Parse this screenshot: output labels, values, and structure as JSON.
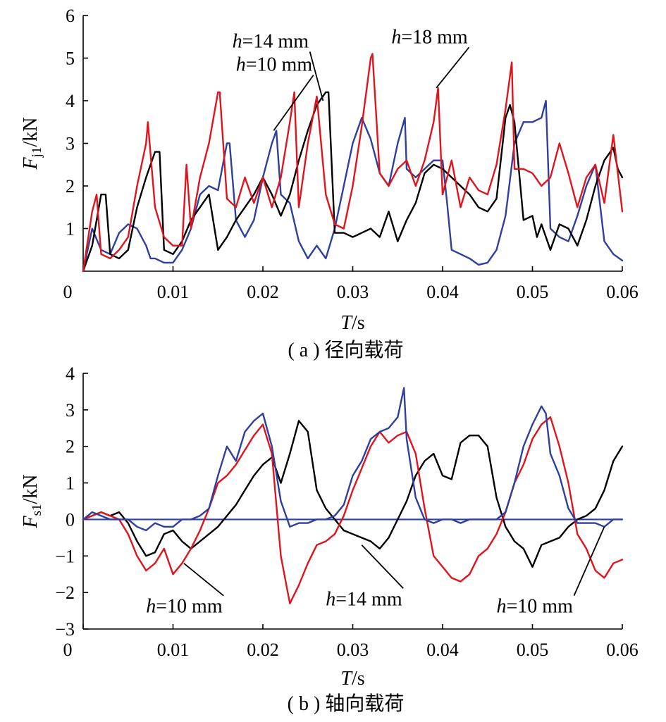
{
  "chart_data": [
    {
      "type": "line",
      "caption": "( a ) 径向载荷",
      "xlabel": {
        "sym": "T",
        "unit": "/s"
      },
      "ylabel": {
        "sym": "F",
        "sub": "j1",
        "unit": "/kN"
      },
      "xlim": [
        0,
        0.06
      ],
      "ylim": [
        0,
        6
      ],
      "xticks": [
        "0",
        "0.01",
        "0.02",
        "0.03",
        "0.04",
        "0.05",
        "0.06"
      ],
      "yticks": [
        "1",
        "2",
        "3",
        "4",
        "5",
        "6"
      ],
      "annotations": [
        {
          "text": "h=10 mm",
          "h": "h",
          "rest": "=10 mm",
          "x": 0.017,
          "y": 4.7,
          "px": 0.0212,
          "py": 3.3
        },
        {
          "text": "h=14 mm",
          "h": "h",
          "rest": "=14 mm",
          "x": 0.0166,
          "y": 5.25,
          "px": 0.0267,
          "py": 4.0
        },
        {
          "text": "h=18 mm",
          "h": "h",
          "rest": "=18 mm",
          "x": 0.0343,
          "y": 5.35,
          "px": 0.0393,
          "py": 4.3
        }
      ],
      "series": [
        {
          "name": "h=10 mm",
          "color": "#2e3f9e",
          "x": [
            0,
            0.001,
            0.002,
            0.003,
            0.004,
            0.005,
            0.006,
            0.007,
            0.0075,
            0.008,
            0.009,
            0.01,
            0.011,
            0.012,
            0.013,
            0.014,
            0.015,
            0.016,
            0.0163,
            0.017,
            0.018,
            0.019,
            0.02,
            0.021,
            0.0215,
            0.022,
            0.023,
            0.024,
            0.025,
            0.026,
            0.027,
            0.028,
            0.029,
            0.03,
            0.031,
            0.032,
            0.033,
            0.034,
            0.035,
            0.0358,
            0.036,
            0.037,
            0.038,
            0.039,
            0.04,
            0.0405,
            0.041,
            0.042,
            0.043,
            0.044,
            0.045,
            0.046,
            0.047,
            0.048,
            0.049,
            0.05,
            0.051,
            0.0515,
            0.052,
            0.053,
            0.054,
            0.055,
            0.056,
            0.057,
            0.058,
            0.059,
            0.06
          ],
          "y": [
            0,
            1.0,
            0.5,
            0.4,
            0.9,
            1.1,
            1.0,
            0.6,
            0.3,
            0.3,
            0.2,
            0.2,
            0.5,
            1.0,
            1.8,
            2.0,
            1.9,
            3.0,
            3.0,
            1.2,
            0.8,
            1.2,
            2.2,
            3.0,
            3.3,
            1.8,
            1.6,
            0.7,
            0.3,
            0.6,
            0.3,
            1.0,
            2.0,
            3.0,
            3.6,
            3.1,
            2.3,
            2.0,
            3.0,
            3.6,
            2.4,
            2.2,
            2.4,
            2.6,
            2.6,
            1.6,
            0.5,
            0.4,
            0.3,
            0.15,
            0.2,
            0.5,
            1.3,
            3.0,
            3.5,
            3.5,
            3.6,
            4.0,
            1.0,
            0.8,
            0.7,
            1.3,
            2.0,
            2.5,
            0.7,
            0.4,
            0.25
          ]
        },
        {
          "name": "h=14 mm",
          "color": "#000000",
          "x": [
            0,
            0.001,
            0.0015,
            0.002,
            0.0025,
            0.003,
            0.004,
            0.005,
            0.006,
            0.007,
            0.008,
            0.0085,
            0.009,
            0.01,
            0.011,
            0.012,
            0.013,
            0.014,
            0.015,
            0.016,
            0.017,
            0.018,
            0.019,
            0.02,
            0.021,
            0.022,
            0.023,
            0.024,
            0.025,
            0.026,
            0.027,
            0.0273,
            0.028,
            0.029,
            0.03,
            0.031,
            0.032,
            0.033,
            0.034,
            0.035,
            0.036,
            0.037,
            0.038,
            0.039,
            0.04,
            0.041,
            0.042,
            0.043,
            0.044,
            0.045,
            0.046,
            0.047,
            0.0475,
            0.048,
            0.049,
            0.05,
            0.0505,
            0.051,
            0.052,
            0.053,
            0.054,
            0.055,
            0.056,
            0.057,
            0.058,
            0.059,
            0.0595,
            0.06
          ],
          "y": [
            0,
            0.6,
            1.2,
            1.8,
            1.8,
            0.4,
            0.3,
            0.5,
            1.5,
            2.2,
            2.8,
            2.8,
            0.5,
            0.4,
            0.7,
            1.2,
            1.5,
            1.8,
            0.5,
            0.8,
            1.2,
            1.5,
            1.8,
            2.2,
            1.8,
            1.3,
            1.8,
            2.6,
            3.3,
            3.9,
            4.2,
            4.2,
            0.9,
            0.9,
            0.8,
            0.9,
            1.0,
            0.8,
            1.4,
            0.7,
            1.2,
            1.6,
            2.3,
            2.5,
            2.4,
            2.2,
            2.0,
            1.8,
            1.5,
            1.4,
            1.7,
            3.6,
            3.9,
            3.5,
            1.2,
            1.3,
            0.8,
            1.1,
            0.5,
            1.1,
            1.0,
            0.6,
            1.2,
            2.0,
            2.6,
            2.9,
            2.4,
            2.2
          ]
        },
        {
          "name": "h=18 mm",
          "color": "#e0141c",
          "x": [
            0,
            0.001,
            0.0015,
            0.002,
            0.003,
            0.004,
            0.005,
            0.006,
            0.007,
            0.0072,
            0.008,
            0.009,
            0.01,
            0.011,
            0.0115,
            0.012,
            0.013,
            0.014,
            0.015,
            0.0152,
            0.016,
            0.017,
            0.018,
            0.019,
            0.02,
            0.021,
            0.022,
            0.023,
            0.0235,
            0.024,
            0.025,
            0.026,
            0.027,
            0.028,
            0.029,
            0.03,
            0.031,
            0.032,
            0.0322,
            0.033,
            0.034,
            0.035,
            0.036,
            0.037,
            0.038,
            0.039,
            0.0395,
            0.04,
            0.041,
            0.042,
            0.043,
            0.044,
            0.045,
            0.046,
            0.047,
            0.0477,
            0.048,
            0.049,
            0.05,
            0.051,
            0.052,
            0.053,
            0.054,
            0.055,
            0.056,
            0.057,
            0.058,
            0.059,
            0.06
          ],
          "y": [
            0,
            1.4,
            1.8,
            0.4,
            0.3,
            0.5,
            0.8,
            2.0,
            3.0,
            3.5,
            1.5,
            0.8,
            0.6,
            0.6,
            2.5,
            1.0,
            2.2,
            3.0,
            4.2,
            4.2,
            1.7,
            1.5,
            2.2,
            1.6,
            2.2,
            1.5,
            2.2,
            3.5,
            4.2,
            1.5,
            3.0,
            4.1,
            1.8,
            1.1,
            1.0,
            2.0,
            3.4,
            5.0,
            5.1,
            2.3,
            2.0,
            2.4,
            2.6,
            2.0,
            2.6,
            3.5,
            4.3,
            1.8,
            2.6,
            1.5,
            2.2,
            1.9,
            1.8,
            2.5,
            3.8,
            4.9,
            2.4,
            2.4,
            2.3,
            2.0,
            2.2,
            3.0,
            2.3,
            1.5,
            2.2,
            2.5,
            1.6,
            3.2,
            1.4
          ]
        }
      ]
    },
    {
      "type": "line",
      "caption": "( b ) 轴向载荷",
      "xlabel": {
        "sym": "T",
        "unit": "/s"
      },
      "ylabel": {
        "sym": "F",
        "sub": "s1",
        "unit": "/kN"
      },
      "xlim": [
        0,
        0.06
      ],
      "ylim": [
        -3,
        4
      ],
      "xticks": [
        "0",
        "0.01",
        "0.02",
        "0.03",
        "0.04",
        "0.05",
        "0.06"
      ],
      "yticks": [
        "-3",
        "-2",
        "-1",
        "0",
        "1",
        "2",
        "3",
        "4"
      ],
      "annotations": [
        {
          "text": "h=10 mm",
          "h": "h",
          "rest": "=10 mm",
          "x": 0.007,
          "y": -2.55,
          "px": 0.0112,
          "py": -1.2
        },
        {
          "text": "h=14 mm",
          "h": "h",
          "rest": "=14 mm",
          "x": 0.027,
          "y": -2.35,
          "px": 0.031,
          "py": -0.7
        },
        {
          "text": "h=10 mm",
          "h": "h",
          "rest": "=10 mm",
          "x": 0.046,
          "y": -2.55,
          "px": 0.058,
          "py": -0.2
        }
      ],
      "series": [
        {
          "name": "h=14 mm",
          "color": "#000000",
          "x": [
            0,
            0.001,
            0.002,
            0.003,
            0.004,
            0.005,
            0.006,
            0.007,
            0.008,
            0.009,
            0.01,
            0.011,
            0.012,
            0.013,
            0.014,
            0.015,
            0.016,
            0.017,
            0.018,
            0.019,
            0.02,
            0.021,
            0.022,
            0.023,
            0.024,
            0.025,
            0.026,
            0.027,
            0.028,
            0.029,
            0.03,
            0.031,
            0.032,
            0.033,
            0.034,
            0.035,
            0.036,
            0.037,
            0.038,
            0.039,
            0.04,
            0.041,
            0.042,
            0.043,
            0.044,
            0.045,
            0.046,
            0.047,
            0.048,
            0.049,
            0.05,
            0.051,
            0.052,
            0.053,
            0.054,
            0.055,
            0.056,
            0.057,
            0.058,
            0.059,
            0.06
          ],
          "y": [
            0,
            0.1,
            0.2,
            0.1,
            0.2,
            -0.1,
            -0.6,
            -1.0,
            -0.9,
            -0.4,
            -0.3,
            -0.6,
            -0.8,
            -0.6,
            -0.4,
            -0.2,
            0.1,
            0.4,
            0.8,
            1.2,
            1.5,
            1.7,
            1.0,
            1.8,
            2.7,
            2.4,
            0.8,
            0.3,
            0.0,
            -0.3,
            -0.4,
            -0.5,
            -0.6,
            -0.8,
            -0.5,
            0.0,
            0.5,
            1.2,
            1.6,
            1.8,
            1.2,
            1.1,
            2.1,
            2.3,
            2.3,
            2.0,
            0.6,
            -0.2,
            -0.6,
            -0.8,
            -1.3,
            -0.7,
            -0.6,
            -0.5,
            -0.2,
            0.0,
            0.1,
            0.3,
            0.8,
            1.6,
            2.0
          ]
        },
        {
          "name": "h=18 mm",
          "color": "#e0141c",
          "x": [
            0,
            0.001,
            0.002,
            0.003,
            0.004,
            0.005,
            0.006,
            0.007,
            0.008,
            0.009,
            0.01,
            0.011,
            0.012,
            0.013,
            0.014,
            0.015,
            0.016,
            0.017,
            0.018,
            0.019,
            0.02,
            0.021,
            0.022,
            0.023,
            0.024,
            0.025,
            0.026,
            0.027,
            0.028,
            0.029,
            0.03,
            0.031,
            0.032,
            0.033,
            0.034,
            0.035,
            0.036,
            0.037,
            0.038,
            0.039,
            0.04,
            0.041,
            0.042,
            0.043,
            0.044,
            0.045,
            0.046,
            0.047,
            0.048,
            0.049,
            0.05,
            0.051,
            0.052,
            0.053,
            0.054,
            0.055,
            0.056,
            0.057,
            0.058,
            0.059,
            0.06
          ],
          "y": [
            0,
            0.1,
            0.2,
            0.1,
            0.0,
            -0.4,
            -1.0,
            -1.4,
            -1.2,
            -0.8,
            -1.5,
            -1.2,
            -0.8,
            -0.3,
            0.3,
            1.0,
            1.2,
            1.5,
            1.9,
            2.3,
            2.6,
            1.8,
            -1.0,
            -2.3,
            -1.8,
            -1.2,
            -0.7,
            -0.6,
            -0.4,
            0.1,
            0.8,
            1.4,
            2.0,
            2.4,
            2.1,
            2.3,
            2.4,
            1.8,
            0.3,
            -1.0,
            -1.3,
            -1.6,
            -1.7,
            -1.5,
            -1.0,
            -0.8,
            -0.4,
            0.2,
            1.0,
            1.5,
            2.2,
            2.6,
            2.8,
            2.0,
            1.0,
            -0.4,
            -0.8,
            -1.4,
            -1.6,
            -1.2,
            -1.1
          ]
        },
        {
          "name": "h=10 mm",
          "color": "#2e3f9e",
          "x": [
            0,
            0.001,
            0.002,
            0.003,
            0.004,
            0.005,
            0.006,
            0.007,
            0.008,
            0.009,
            0.01,
            0.011,
            0.012,
            0.013,
            0.014,
            0.015,
            0.016,
            0.017,
            0.018,
            0.019,
            0.02,
            0.021,
            0.022,
            0.023,
            0.024,
            0.025,
            0.026,
            0.027,
            0.028,
            0.029,
            0.03,
            0.031,
            0.032,
            0.033,
            0.034,
            0.035,
            0.0357,
            0.036,
            0.037,
            0.038,
            0.039,
            0.04,
            0.041,
            0.042,
            0.043,
            0.044,
            0.045,
            0.046,
            0.047,
            0.048,
            0.049,
            0.05,
            0.051,
            0.0515,
            0.052,
            0.053,
            0.054,
            0.055,
            0.056,
            0.057,
            0.058,
            0.059,
            0.06
          ],
          "y": [
            0,
            0.2,
            0.1,
            0.0,
            0.0,
            0.0,
            -0.2,
            -0.3,
            -0.1,
            -0.2,
            -0.2,
            0.0,
            0.0,
            0.1,
            0.3,
            1.2,
            2.0,
            1.6,
            2.4,
            2.7,
            2.9,
            2.0,
            0.5,
            -0.2,
            -0.1,
            -0.1,
            0.0,
            0.0,
            0.1,
            0.4,
            1.2,
            1.6,
            2.2,
            2.4,
            2.5,
            2.8,
            3.6,
            2.2,
            0.6,
            0.0,
            -0.1,
            0.0,
            0.0,
            -0.1,
            0.0,
            0.0,
            0.0,
            0.0,
            0.2,
            1.0,
            2.0,
            2.6,
            3.1,
            2.9,
            1.8,
            1.2,
            0.3,
            -0.1,
            -0.1,
            -0.1,
            -0.2,
            0.0,
            0.0
          ]
        }
      ]
    }
  ]
}
